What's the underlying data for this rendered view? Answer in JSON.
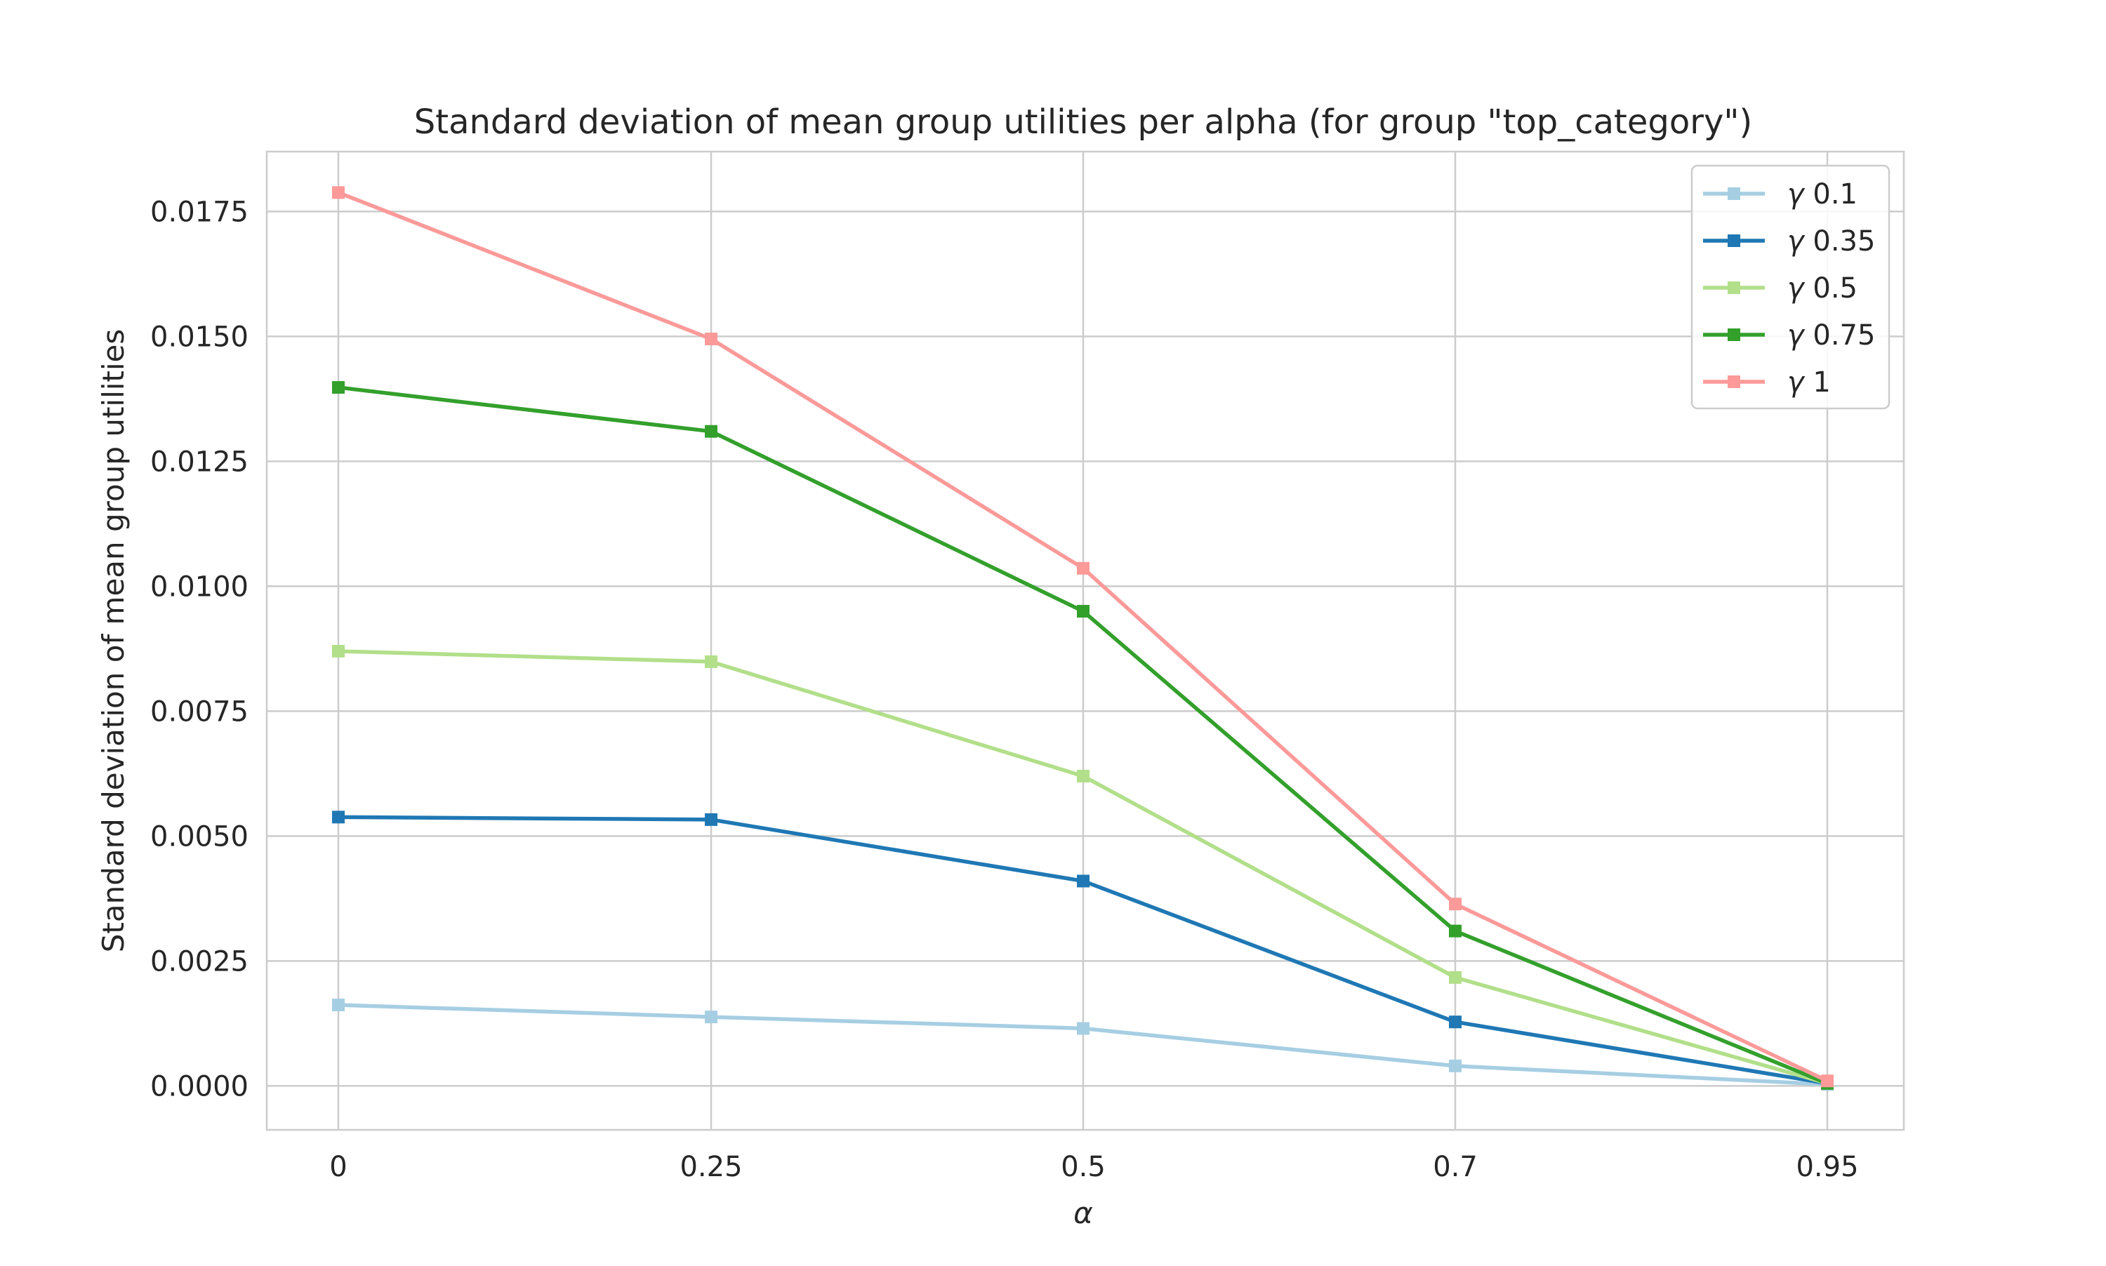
{
  "chart_data": {
    "type": "line",
    "title": "Standard deviation of mean group utilities per alpha (for group \"top_category\")",
    "xlabel": "α",
    "ylabel": "Standard deviation of mean group utilities",
    "categories": [
      "0",
      "0.25",
      "0.5",
      "0.7",
      "0.95"
    ],
    "ylim": [
      -0.00088,
      0.0187
    ],
    "yticks": [
      "0.0000",
      "0.0025",
      "0.0050",
      "0.0075",
      "0.0100",
      "0.0125",
      "0.0150",
      "0.0175"
    ],
    "ytick_values": [
      0,
      0.0025,
      0.005,
      0.0075,
      0.01,
      0.0125,
      0.015,
      0.0175
    ],
    "grid": true,
    "legend_position": "top-right",
    "marker": "square",
    "series": [
      {
        "name": "γ 0.1",
        "greek": "γ",
        "value_label": "0.1",
        "color": "#a6cee3",
        "values": [
          0.00162,
          0.00138,
          0.00115,
          0.0004,
          3e-05
        ]
      },
      {
        "name": "γ 0.35",
        "greek": "γ",
        "value_label": "0.35",
        "color": "#1f78b4",
        "values": [
          0.00538,
          0.00533,
          0.0041,
          0.00128,
          5e-05
        ]
      },
      {
        "name": "γ 0.5",
        "greek": "γ",
        "value_label": "0.5",
        "color": "#b2df8a",
        "values": [
          0.0087,
          0.00849,
          0.0062,
          0.00217,
          5e-05
        ]
      },
      {
        "name": "γ 0.75",
        "greek": "γ",
        "value_label": "0.75",
        "color": "#33a02c",
        "values": [
          0.01398,
          0.0131,
          0.0095,
          0.0031,
          5e-05
        ]
      },
      {
        "name": "γ 1",
        "greek": "γ",
        "value_label": "1",
        "color": "#fb9a99",
        "values": [
          0.01788,
          0.01495,
          0.01036,
          0.00364,
          0.0001
        ]
      }
    ]
  }
}
